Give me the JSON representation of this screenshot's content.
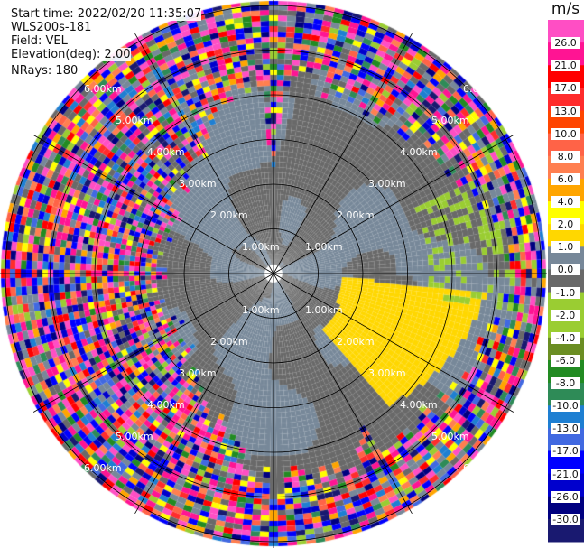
{
  "header": {
    "start_time": "Start time: 2022/02/20 11:35:07",
    "instrument": "WLS200s-181",
    "field": "Field: VEL",
    "elevation": "Elevation(deg): 2.00",
    "nrays": "NRays: 180"
  },
  "chart_data": {
    "type": "heatmap",
    "subtype": "radar-ppi",
    "field": "VEL",
    "units": "m/s",
    "elevation_deg": 2.0,
    "n_rays": 180,
    "range_km": [
      0,
      6.1
    ],
    "range_ring_labels": [
      "1.00km",
      "2.00km",
      "3.00km",
      "4.00km",
      "5.00km",
      "6.00km"
    ],
    "spoke_interval_deg": 30,
    "colorbar": {
      "title": "m/s",
      "tick_labels": [
        "26.0",
        "21.0",
        "17.0",
        "13.0",
        "10.0",
        "8.0",
        "6.0",
        "4.0",
        "2.0",
        "1.0",
        "0.0",
        "-1.0",
        "-2.0",
        "-4.0",
        "-6.0",
        "-8.0",
        "-10.0",
        "-13.0",
        "-17.0",
        "-21.0",
        "-26.0",
        "-30.0"
      ],
      "colors": [
        "#ff4ec4",
        "#ff1493",
        "#ff0000",
        "#ff2c2c",
        "#ff4500",
        "#ff6347",
        "#ff7f50",
        "#ffa500",
        "#ffff00",
        "#ffd700",
        "#778899",
        "#696969",
        "#9acd32",
        "#9acd32",
        "#6b8e23",
        "#228b22",
        "#2e8b57",
        "#1e7fd2",
        "#4169e1",
        "#0000ff",
        "#0000cd",
        "#000080",
        "#191970"
      ]
    },
    "features": {
      "near_field": "mostly 0 to 1 m/s (gray)",
      "southeast_region": "2 to 4 m/s (gold)",
      "outer_ranges": "noisy, full colour range"
    }
  }
}
